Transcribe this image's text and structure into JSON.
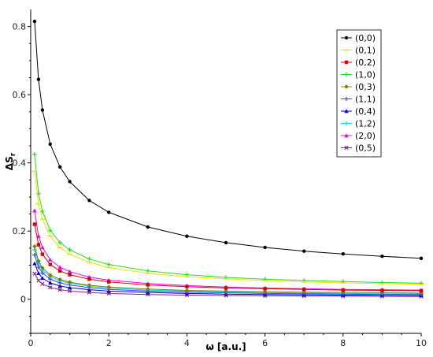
{
  "chart_data": {
    "type": "line",
    "title": "",
    "xlabel": "ω [a.u.]",
    "ylabel": "ΔS",
    "ylabel_subscript": "r",
    "xlim": [
      0,
      10
    ],
    "ylim": [
      -0.1,
      0.85
    ],
    "xticks": [
      "0",
      "2",
      "4",
      "6",
      "8",
      "10"
    ],
    "yticks": [
      "0",
      "0.2",
      "0.4",
      "0.6",
      "0.8"
    ],
    "grid": false,
    "legend_position": "top-right",
    "x": [
      0.1,
      0.2,
      0.3,
      0.5,
      0.75,
      1,
      1.5,
      2,
      3,
      4,
      5,
      6,
      7,
      8,
      9,
      10
    ],
    "series": [
      {
        "name": "(0,0)",
        "color": "#000000",
        "marker": "circle",
        "values": [
          0.815,
          0.645,
          0.555,
          0.455,
          0.388,
          0.345,
          0.29,
          0.255,
          0.212,
          0.185,
          0.166,
          0.152,
          0.141,
          0.133,
          0.126,
          0.12
        ]
      },
      {
        "name": "(0,1)",
        "color": "#f0e000",
        "marker": "dash",
        "values": [
          0.375,
          0.28,
          0.235,
          0.185,
          0.152,
          0.132,
          0.108,
          0.093,
          0.076,
          0.066,
          0.06,
          0.055,
          0.051,
          0.048,
          0.046,
          0.044
        ]
      },
      {
        "name": "(0,2)",
        "color": "#dd0000",
        "marker": "square",
        "values": [
          0.22,
          0.16,
          0.132,
          0.102,
          0.083,
          0.072,
          0.059,
          0.051,
          0.042,
          0.037,
          0.033,
          0.031,
          0.029,
          0.027,
          0.026,
          0.025
        ]
      },
      {
        "name": "(1,0)",
        "color": "#22dd22",
        "marker": "plus",
        "values": [
          0.425,
          0.31,
          0.258,
          0.202,
          0.166,
          0.145,
          0.118,
          0.102,
          0.083,
          0.072,
          0.064,
          0.059,
          0.055,
          0.052,
          0.049,
          0.047
        ]
      },
      {
        "name": "(0,3)",
        "color": "#808000",
        "marker": "diamond",
        "values": [
          0.155,
          0.112,
          0.092,
          0.071,
          0.058,
          0.05,
          0.041,
          0.036,
          0.03,
          0.026,
          0.024,
          0.022,
          0.021,
          0.02,
          0.019,
          0.018
        ]
      },
      {
        "name": "(1,1)",
        "color": "#4040ff",
        "marker": "plus",
        "values": [
          0.13,
          0.094,
          0.077,
          0.059,
          0.048,
          0.042,
          0.034,
          0.029,
          0.024,
          0.021,
          0.019,
          0.017,
          0.016,
          0.015,
          0.014,
          0.014
        ]
      },
      {
        "name": "(0,4)",
        "color": "#0000cc",
        "marker": "triangle",
        "values": [
          0.105,
          0.076,
          0.062,
          0.048,
          0.039,
          0.034,
          0.028,
          0.024,
          0.02,
          0.017,
          0.015,
          0.014,
          0.013,
          0.012,
          0.012,
          0.011
        ]
      },
      {
        "name": "(1,2)",
        "color": "#00dddd",
        "marker": "plus",
        "values": [
          0.145,
          0.105,
          0.086,
          0.066,
          0.054,
          0.047,
          0.038,
          0.033,
          0.027,
          0.024,
          0.021,
          0.02,
          0.018,
          0.017,
          0.016,
          0.016
        ]
      },
      {
        "name": "(2,0)",
        "color": "#ee00ee",
        "marker": "triangle",
        "values": [
          0.26,
          0.185,
          0.152,
          0.116,
          0.094,
          0.081,
          0.065,
          0.056,
          0.046,
          0.04,
          0.036,
          0.033,
          0.031,
          0.029,
          0.028,
          0.027
        ]
      },
      {
        "name": "(0,5)",
        "color": "#882288",
        "marker": "cross",
        "values": [
          0.075,
          0.055,
          0.045,
          0.035,
          0.028,
          0.024,
          0.02,
          0.017,
          0.014,
          0.012,
          0.011,
          0.01,
          0.0095,
          0.009,
          0.0085,
          0.008
        ]
      }
    ]
  }
}
